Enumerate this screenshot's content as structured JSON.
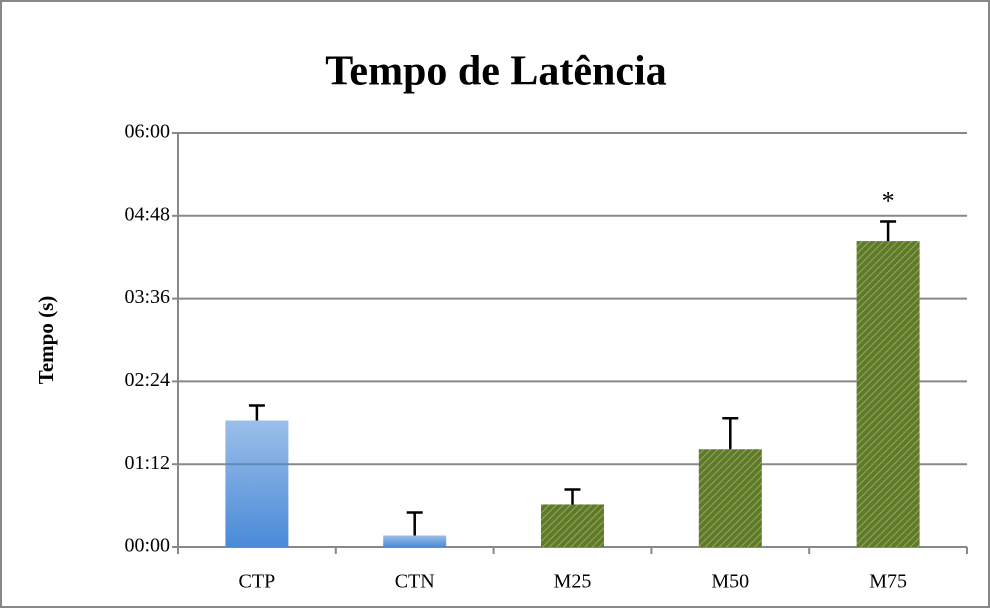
{
  "chart_data": {
    "type": "bar",
    "title": "Tempo de Latência",
    "y_label": "Tempo (s)",
    "categories": [
      "CTP",
      "CTN",
      "M25",
      "M50",
      "M75"
    ],
    "values": [
      110,
      10,
      37,
      85,
      266
    ],
    "errors": [
      13,
      20,
      13,
      27,
      17
    ],
    "colors": [
      "#4a8ad8",
      "#4a8ad8",
      "#5f7a2a",
      "#5f7a2a",
      "#5f7a2a"
    ],
    "hatch": [
      false,
      false,
      true,
      true,
      true
    ],
    "ylim": [
      0,
      360
    ],
    "yticks": [
      {
        "value": 0,
        "label": "00:00"
      },
      {
        "value": 72,
        "label": "01:12"
      },
      {
        "value": 144,
        "label": "02:24"
      },
      {
        "value": 216,
        "label": "03:36"
      },
      {
        "value": 288,
        "label": "04:48"
      },
      {
        "value": 360,
        "label": "06:00"
      }
    ],
    "grid": true,
    "annotations": [
      {
        "text": "*",
        "category": "M75"
      }
    ]
  }
}
